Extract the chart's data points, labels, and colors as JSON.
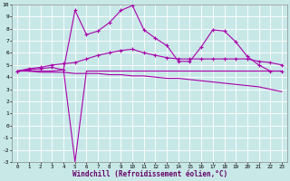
{
  "background_color": "#c8e8e8",
  "grid_color": "#b8d8d8",
  "line_color": "#aa00aa",
  "xlabel": "Windchill (Refroidissement éolien,°C)",
  "xlim": [
    -0.5,
    23.5
  ],
  "ylim": [
    -3,
    10
  ],
  "xticks": [
    0,
    1,
    2,
    3,
    4,
    5,
    6,
    7,
    8,
    9,
    10,
    11,
    12,
    13,
    14,
    15,
    16,
    17,
    18,
    19,
    20,
    21,
    22,
    23
  ],
  "yticks": [
    -3,
    -2,
    -1,
    0,
    1,
    2,
    3,
    4,
    5,
    6,
    7,
    8,
    9,
    10
  ],
  "ytick_labels": [
    "-3",
    "-2",
    "-1",
    "0",
    "1",
    "2",
    "3",
    "4",
    "5",
    "6",
    "7",
    "8",
    "9",
    "10"
  ],
  "series": [
    {
      "x": [
        0,
        1,
        2,
        3,
        4,
        5,
        6,
        7,
        8,
        9,
        10,
        11,
        12,
        13,
        14,
        15,
        16,
        17,
        18,
        19,
        20,
        21,
        22,
        23
      ],
      "y": [
        4.5,
        4.6,
        4.7,
        4.8,
        4.6,
        9.5,
        7.5,
        7.8,
        8.5,
        9.5,
        9.9,
        7.9,
        7.2,
        6.6,
        5.3,
        5.3,
        6.5,
        7.9,
        7.8,
        6.9,
        5.7,
        5.0,
        4.5,
        4.5
      ],
      "marker": true,
      "linewidth": 0.8
    },
    {
      "x": [
        0,
        1,
        2,
        3,
        4,
        5,
        6,
        7,
        8,
        9,
        10,
        11,
        12,
        13,
        14,
        15,
        16,
        17,
        18,
        19,
        20,
        21,
        22,
        23
      ],
      "y": [
        4.5,
        4.7,
        4.8,
        5.0,
        5.1,
        5.2,
        5.5,
        5.8,
        6.0,
        6.2,
        6.3,
        6.0,
        5.8,
        5.6,
        5.5,
        5.5,
        5.5,
        5.5,
        5.5,
        5.5,
        5.5,
        5.3,
        5.2,
        5.0
      ],
      "marker": true,
      "linewidth": 0.8
    },
    {
      "x": [
        0,
        1,
        2,
        3,
        4,
        5,
        6,
        7,
        8,
        9,
        10,
        11,
        12,
        13,
        14,
        15,
        16,
        17,
        18,
        19,
        20,
        21,
        22,
        23
      ],
      "y": [
        4.5,
        4.5,
        4.5,
        4.5,
        4.6,
        -3.0,
        4.5,
        4.5,
        4.5,
        4.5,
        4.5,
        4.5,
        4.5,
        4.5,
        4.5,
        4.5,
        4.5,
        4.5,
        4.5,
        4.5,
        4.5,
        4.5,
        4.5,
        4.5
      ],
      "marker": false,
      "linewidth": 0.8
    },
    {
      "x": [
        0,
        1,
        2,
        3,
        4,
        5,
        6,
        7,
        8,
        9,
        10,
        11,
        12,
        13,
        14,
        15,
        16,
        17,
        18,
        19,
        20,
        21,
        22,
        23
      ],
      "y": [
        4.5,
        4.5,
        4.4,
        4.4,
        4.4,
        4.3,
        4.3,
        4.3,
        4.2,
        4.2,
        4.1,
        4.1,
        4.0,
        3.9,
        3.9,
        3.8,
        3.7,
        3.6,
        3.5,
        3.4,
        3.3,
        3.2,
        3.0,
        2.8
      ],
      "marker": false,
      "linewidth": 0.8
    }
  ]
}
